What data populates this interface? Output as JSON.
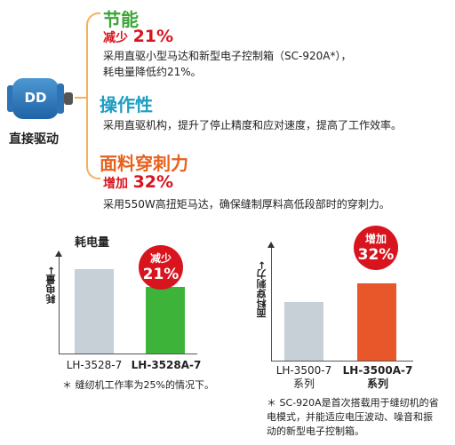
{
  "colors": {
    "green": "#3aa635",
    "teal": "#1d9ec1",
    "orange": "#e8611d",
    "red": "#d8141e",
    "gray_bar": "#c6d0d6",
    "green_bar": "#3eb33a",
    "orange_bar": "#e8572a"
  },
  "motor": {
    "badge": "DD",
    "label": "直接驱动"
  },
  "features": [
    {
      "title": "节能",
      "sub_prefix": "减少",
      "sub_value": "21%",
      "desc": [
        "采用直驱小型马达和新型电子控制箱（SC-920A*），",
        "耗电量降低约21%。"
      ]
    },
    {
      "title": "操作性",
      "desc": [
        "采用直驱机构，提升了停止精度和应对速度，提高了工作效率。"
      ]
    },
    {
      "title": "面料穿刺力",
      "sub_prefix": "增加",
      "sub_value": "32%",
      "desc": [
        "采用550W高扭矩马达，确保缝制厚料高低段部时的穿刺力。"
      ]
    }
  ],
  "charts": [
    {
      "title": "耗电量",
      "ylabel": "耗电量",
      "badge": {
        "line1": "减少",
        "line2": "21%"
      },
      "categories": [
        "LH-3528-7",
        "LH-3528A-7"
      ],
      "note": "＊ 缝纫机工作率为25%的情况下。"
    },
    {
      "ylabel": "面料穿刺力",
      "badge": {
        "line1": "增加",
        "line2": "32%"
      },
      "categories": [
        [
          "LH-3500-7",
          "系列"
        ],
        [
          "LH-3500A-7",
          "系列"
        ]
      ],
      "note": [
        "＊ SC-920A是首次搭载用于缝纫机的省",
        "电模式，并能适应电压波动、噪音和振",
        "动的新型电子控制箱。"
      ]
    }
  ],
  "chart_data": [
    {
      "type": "bar",
      "title": "耗电量",
      "ylabel": "耗电量",
      "categories": [
        "LH-3528-7",
        "LH-3528A-7"
      ],
      "values": [
        100,
        79
      ],
      "annotation": "减少 21%"
    },
    {
      "type": "bar",
      "ylabel": "面料穿刺力",
      "categories": [
        "LH-3500-7 系列",
        "LH-3500A-7 系列"
      ],
      "values": [
        100,
        132
      ],
      "annotation": "增加 32%"
    }
  ]
}
